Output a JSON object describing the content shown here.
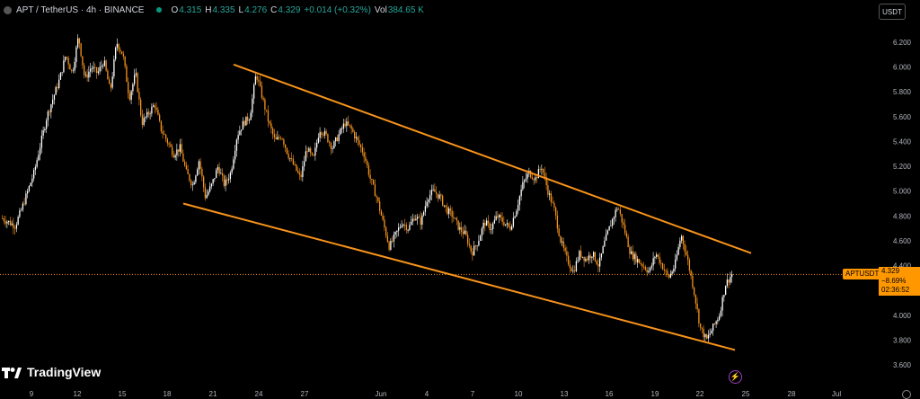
{
  "header": {
    "symbol": "APT / TetherUS · 4h · BINANCE",
    "open_label": "O",
    "open": "4.315",
    "high_label": "H",
    "high": "4.335",
    "low_label": "L",
    "low": "4.276",
    "close_label": "C",
    "close": "4.329",
    "change": "+0.014 (+0.32%)",
    "vol_label": "Vol",
    "vol": "384.65 K"
  },
  "currency_button": "USDT",
  "price_axis": [
    "6.200",
    "6.000",
    "5.800",
    "5.600",
    "5.400",
    "5.200",
    "5.000",
    "4.800",
    "4.600",
    "4.400",
    "4.200",
    "4.000",
    "3.800",
    "3.600"
  ],
  "time_axis": [
    "9",
    "12",
    "15",
    "18",
    "21",
    "24",
    "27",
    "Jun",
    "4",
    "7",
    "10",
    "13",
    "16",
    "19",
    "22",
    "25",
    "28",
    "Jul"
  ],
  "price_label": {
    "symbol": "APTUSDT",
    "price": "4.329",
    "change": "−8.69%",
    "countdown": "02:36:52"
  },
  "branding": "TradingView",
  "colors": {
    "up": "#ffffff",
    "down": "#f7931a",
    "trendline": "#f7931a",
    "background": "#000000",
    "axis_text": "#b2b5be"
  },
  "chart_data": {
    "type": "candlestick",
    "title": "APT / TetherUS · 4h · BINANCE",
    "ylim": [
      3.5,
      6.35
    ],
    "y_ticks": [
      3.6,
      3.8,
      4.0,
      4.2,
      4.4,
      4.6,
      4.8,
      5.0,
      5.2,
      5.4,
      5.6,
      5.8,
      6.0,
      6.2
    ],
    "x_ticks": [
      "9",
      "12",
      "15",
      "18",
      "21",
      "24",
      "27",
      "Jun",
      "4",
      "7",
      "10",
      "13",
      "16",
      "19",
      "22",
      "25",
      "28",
      "Jul"
    ],
    "last_price": 4.329,
    "price_path": [
      [
        0,
        4.78
      ],
      [
        2,
        4.72
      ],
      [
        3,
        4.85
      ],
      [
        5,
        5.15
      ],
      [
        7,
        5.6
      ],
      [
        9,
        5.9
      ],
      [
        10,
        6.1
      ],
      [
        11,
        5.95
      ],
      [
        12,
        6.25
      ],
      [
        13,
        5.9
      ],
      [
        14,
        6.0
      ],
      [
        15,
        5.95
      ],
      [
        16,
        6.05
      ],
      [
        17,
        5.8
      ],
      [
        18,
        6.2
      ],
      [
        19,
        6.1
      ],
      [
        20,
        5.75
      ],
      [
        21,
        5.95
      ],
      [
        22,
        5.55
      ],
      [
        24,
        5.7
      ],
      [
        25,
        5.5
      ],
      [
        26,
        5.4
      ],
      [
        27,
        5.3
      ],
      [
        28,
        5.35
      ],
      [
        29,
        5.15
      ],
      [
        30,
        5.05
      ],
      [
        31,
        5.25
      ],
      [
        32,
        4.95
      ],
      [
        33,
        5.05
      ],
      [
        34,
        5.2
      ],
      [
        35,
        5.05
      ],
      [
        36,
        5.15
      ],
      [
        37,
        5.45
      ],
      [
        38,
        5.55
      ],
      [
        39,
        5.6
      ],
      [
        40,
        5.95
      ],
      [
        41,
        5.75
      ],
      [
        42,
        5.55
      ],
      [
        43,
        5.4
      ],
      [
        44,
        5.45
      ],
      [
        45,
        5.3
      ],
      [
        46,
        5.2
      ],
      [
        47,
        5.1
      ],
      [
        48,
        5.35
      ],
      [
        49,
        5.25
      ],
      [
        50,
        5.5
      ],
      [
        51,
        5.45
      ],
      [
        52,
        5.35
      ],
      [
        53,
        5.45
      ],
      [
        54,
        5.55
      ],
      [
        55,
        5.5
      ],
      [
        56,
        5.4
      ],
      [
        57,
        5.3
      ],
      [
        58,
        5.1
      ],
      [
        59,
        4.95
      ],
      [
        60,
        4.75
      ],
      [
        61,
        4.55
      ],
      [
        62,
        4.65
      ],
      [
        63,
        4.75
      ],
      [
        64,
        4.7
      ],
      [
        65,
        4.8
      ],
      [
        66,
        4.75
      ],
      [
        67,
        4.95
      ],
      [
        68,
        5.0
      ],
      [
        69,
        4.95
      ],
      [
        70,
        4.85
      ],
      [
        71,
        4.8
      ],
      [
        72,
        4.7
      ],
      [
        73,
        4.65
      ],
      [
        74,
        4.5
      ],
      [
        75,
        4.6
      ],
      [
        76,
        4.75
      ],
      [
        77,
        4.7
      ],
      [
        78,
        4.8
      ],
      [
        79,
        4.75
      ],
      [
        80,
        4.7
      ],
      [
        81,
        4.85
      ],
      [
        82,
        5.05
      ],
      [
        83,
        5.15
      ],
      [
        84,
        5.1
      ],
      [
        85,
        5.2
      ],
      [
        86,
        5.0
      ],
      [
        87,
        4.85
      ],
      [
        88,
        4.6
      ],
      [
        89,
        4.45
      ],
      [
        90,
        4.35
      ],
      [
        91,
        4.5
      ],
      [
        92,
        4.45
      ],
      [
        93,
        4.5
      ],
      [
        94,
        4.4
      ],
      [
        95,
        4.6
      ],
      [
        96,
        4.75
      ],
      [
        97,
        4.88
      ],
      [
        98,
        4.7
      ],
      [
        99,
        4.5
      ],
      [
        100,
        4.45
      ],
      [
        101,
        4.4
      ],
      [
        102,
        4.35
      ],
      [
        103,
        4.5
      ],
      [
        104,
        4.4
      ],
      [
        105,
        4.3
      ],
      [
        106,
        4.4
      ],
      [
        107,
        4.65
      ],
      [
        108,
        4.45
      ],
      [
        109,
        4.2
      ],
      [
        110,
        3.9
      ],
      [
        111,
        3.8
      ],
      [
        112,
        3.9
      ],
      [
        113,
        4.0
      ],
      [
        114,
        4.25
      ],
      [
        115,
        4.33
      ]
    ],
    "trendlines": [
      {
        "name": "upper channel",
        "from": {
          "x_label": "22",
          "price": 6.02
        },
        "to": {
          "x_label": "25",
          "price": 4.5
        }
      },
      {
        "name": "lower channel",
        "from": {
          "x_label": "18",
          "price": 4.9
        },
        "to": {
          "x_label": "24",
          "price": 3.72
        }
      }
    ],
    "legend": "none",
    "grid": false
  }
}
